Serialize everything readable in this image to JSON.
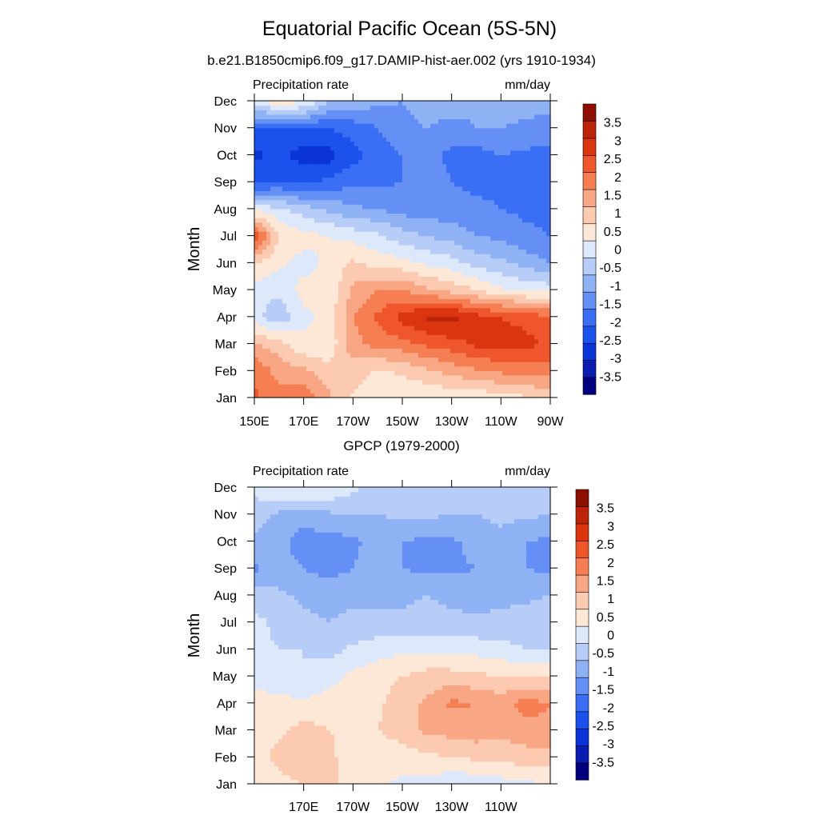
{
  "title": "Equatorial Pacific Ocean (5S-5N)",
  "subtitle": "b.e21.B1850cmip6.f09_g17.DAMIP-hist-aer.002 (yrs 1910-1934)",
  "panel2_title": "GPCP (1979-2000)",
  "colors": {
    "levels": [
      "#00007f",
      "#0a1db0",
      "#0a34d5",
      "#1b52ec",
      "#3a6ff5",
      "#6490f5",
      "#8fb2f5",
      "#b7cdf7",
      "#dde8fb",
      "#fde8d8",
      "#fbcab0",
      "#f8a683",
      "#f67e53",
      "#f0562c",
      "#db3510",
      "#bb2408",
      "#8f0e02"
    ]
  },
  "chart_data": [
    {
      "type": "heatmap",
      "title": "Precipitation rate",
      "units": "mm/day",
      "ylabel": "Month",
      "xlabel": "",
      "x_ticks": [
        "150E",
        "170E",
        "170W",
        "150W",
        "130W",
        "110W",
        "90W"
      ],
      "y_ticks": [
        "Jan",
        "Feb",
        "Mar",
        "Apr",
        "May",
        "Jun",
        "Jul",
        "Aug",
        "Sep",
        "Oct",
        "Nov",
        "Dec"
      ],
      "x_range": [
        150,
        270
      ],
      "y_range": [
        1,
        12
      ],
      "colorbar_labels": [
        "3.5",
        "3",
        "2.5",
        "2",
        "1.5",
        "1",
        "0.5",
        "0",
        "-0.5",
        "-1",
        "-1.5",
        "-2",
        "-2.5",
        "-3",
        "-3.5"
      ],
      "colorbar_range": [
        -4,
        4
      ],
      "x": [
        150,
        160,
        170,
        180,
        190,
        200,
        210,
        220,
        230,
        240,
        250,
        260,
        270
      ],
      "y": [
        1,
        2,
        3,
        4,
        5,
        6,
        7,
        8,
        9,
        10,
        11,
        12
      ],
      "z": [
        [
          2.6,
          2.2,
          2.4,
          1.6,
          0.9,
          0.7,
          0.5,
          0.5,
          0.6,
          0.6,
          0.8,
          0.9,
          1.1
        ],
        [
          2.4,
          1.8,
          1.6,
          1.2,
          1.3,
          0.9,
          1.1,
          1.4,
          1.7,
          1.9,
          2.1,
          2.2,
          2.3
        ],
        [
          1.6,
          1.2,
          0.6,
          0.6,
          1.8,
          2.2,
          2.3,
          2.6,
          2.8,
          3.1,
          3.3,
          3.2,
          2.8
        ],
        [
          0.2,
          -0.4,
          0.4,
          0.6,
          2.0,
          2.6,
          3.2,
          3.6,
          3.7,
          3.2,
          3.0,
          2.8,
          2.6
        ],
        [
          0.3,
          0.1,
          0.7,
          0.6,
          1.6,
          2.0,
          2.0,
          1.6,
          1.3,
          1.0,
          0.6,
          0.4,
          0.3
        ],
        [
          1.0,
          0.6,
          0.3,
          0.6,
          1.1,
          0.8,
          0.7,
          0.4,
          0.2,
          -0.2,
          -0.4,
          -0.7,
          -1.0
        ],
        [
          3.0,
          1.0,
          0.7,
          0.5,
          0.3,
          0.1,
          -0.3,
          -0.5,
          -0.7,
          -1.0,
          -1.1,
          -1.4,
          -1.5
        ],
        [
          0.4,
          0.1,
          -0.3,
          -0.6,
          -0.9,
          -1.0,
          -1.2,
          -1.3,
          -1.3,
          -1.4,
          -1.5,
          -1.6,
          -1.6
        ],
        [
          -2.2,
          -2.0,
          -2.1,
          -1.9,
          -1.6,
          -1.6,
          -1.5,
          -1.3,
          -1.5,
          -1.6,
          -1.6,
          -1.8,
          -1.8
        ],
        [
          -2.6,
          -2.4,
          -2.7,
          -2.7,
          -2.2,
          -1.8,
          -1.5,
          -1.4,
          -1.6,
          -1.7,
          -1.5,
          -1.6,
          -1.7
        ],
        [
          -2.0,
          -2.2,
          -2.0,
          -2.0,
          -1.8,
          -1.5,
          -1.1,
          -1.0,
          -1.2,
          -1.0,
          -1.0,
          -1.1,
          -1.2
        ],
        [
          0.4,
          0.9,
          0.6,
          -0.4,
          -0.6,
          -0.9,
          -1.0,
          -0.8,
          -0.7,
          -0.9,
          -0.8,
          -0.8,
          -0.8
        ]
      ]
    },
    {
      "type": "heatmap",
      "title": "Precipitation rate",
      "units": "mm/day",
      "ylabel": "Month",
      "xlabel": "",
      "x_ticks": [
        "170E",
        "170W",
        "150W",
        "130W",
        "110W"
      ],
      "y_ticks": [
        "Jan",
        "Feb",
        "Mar",
        "Apr",
        "May",
        "Jun",
        "Jul",
        "Aug",
        "Sep",
        "Oct",
        "Nov",
        "Dec"
      ],
      "x_range": [
        150,
        270
      ],
      "y_range": [
        1,
        12
      ],
      "colorbar_labels": [
        "3.5",
        "3",
        "2.5",
        "2",
        "1.5",
        "1",
        "0.5",
        "0",
        "-0.5",
        "-1",
        "-1.5",
        "-2",
        "-2.5",
        "-3",
        "-3.5"
      ],
      "colorbar_range": [
        -4,
        4
      ],
      "x": [
        150,
        160,
        170,
        180,
        190,
        200,
        210,
        220,
        230,
        240,
        250,
        260,
        270
      ],
      "y": [
        1,
        2,
        3,
        4,
        5,
        6,
        7,
        8,
        9,
        10,
        11,
        12
      ],
      "z": [
        [
          0.6,
          0.8,
          1.0,
          1.2,
          0.7,
          0.6,
          0.4,
          0.3,
          0.1,
          0.1,
          0.3,
          0.4,
          0.5
        ],
        [
          0.7,
          1.2,
          1.4,
          1.2,
          0.6,
          0.6,
          0.7,
          0.9,
          1.0,
          1.1,
          1.1,
          1.3,
          1.3
        ],
        [
          0.8,
          0.9,
          1.2,
          1.0,
          0.8,
          1.0,
          1.3,
          1.6,
          1.7,
          1.8,
          1.7,
          1.8,
          1.9
        ],
        [
          0.8,
          0.7,
          0.6,
          0.7,
          0.8,
          0.9,
          1.3,
          1.6,
          2.1,
          2.0,
          1.8,
          2.2,
          2.0
        ],
        [
          0.2,
          0.1,
          0.0,
          0.3,
          0.6,
          0.8,
          1.0,
          1.2,
          1.2,
          1.1,
          1.0,
          1.0,
          1.0
        ],
        [
          0.2,
          0.0,
          0.0,
          -0.2,
          0.1,
          0.3,
          0.4,
          0.4,
          0.4,
          0.3,
          0.2,
          0.0,
          0.0
        ],
        [
          0.2,
          -0.2,
          -0.4,
          -0.5,
          -0.4,
          -0.4,
          -0.4,
          -0.3,
          -0.4,
          -0.4,
          -0.4,
          -0.3,
          -0.2
        ],
        [
          -0.3,
          -0.4,
          -0.6,
          -0.6,
          -0.6,
          -0.6,
          -0.6,
          -0.5,
          -0.6,
          -0.7,
          -0.6,
          -0.6,
          -0.5
        ],
        [
          -1.1,
          -0.8,
          -1.0,
          -1.2,
          -1.0,
          -0.8,
          -1.0,
          -1.1,
          -1.1,
          -1.0,
          -0.9,
          -1.0,
          -1.1
        ],
        [
          -0.6,
          -0.8,
          -1.3,
          -1.2,
          -1.1,
          -0.8,
          -1.0,
          -1.1,
          -1.1,
          -0.8,
          -0.6,
          -1.0,
          -1.1
        ],
        [
          -0.3,
          -0.6,
          -0.7,
          -0.6,
          -0.5,
          -0.5,
          -0.4,
          -0.4,
          -0.5,
          -0.5,
          -0.4,
          -0.4,
          -0.5
        ],
        [
          0.2,
          0.5,
          0.6,
          0.5,
          0.1,
          -0.2,
          -0.2,
          -0.3,
          -0.4,
          -0.4,
          -0.4,
          -0.3,
          -0.3
        ]
      ]
    }
  ]
}
